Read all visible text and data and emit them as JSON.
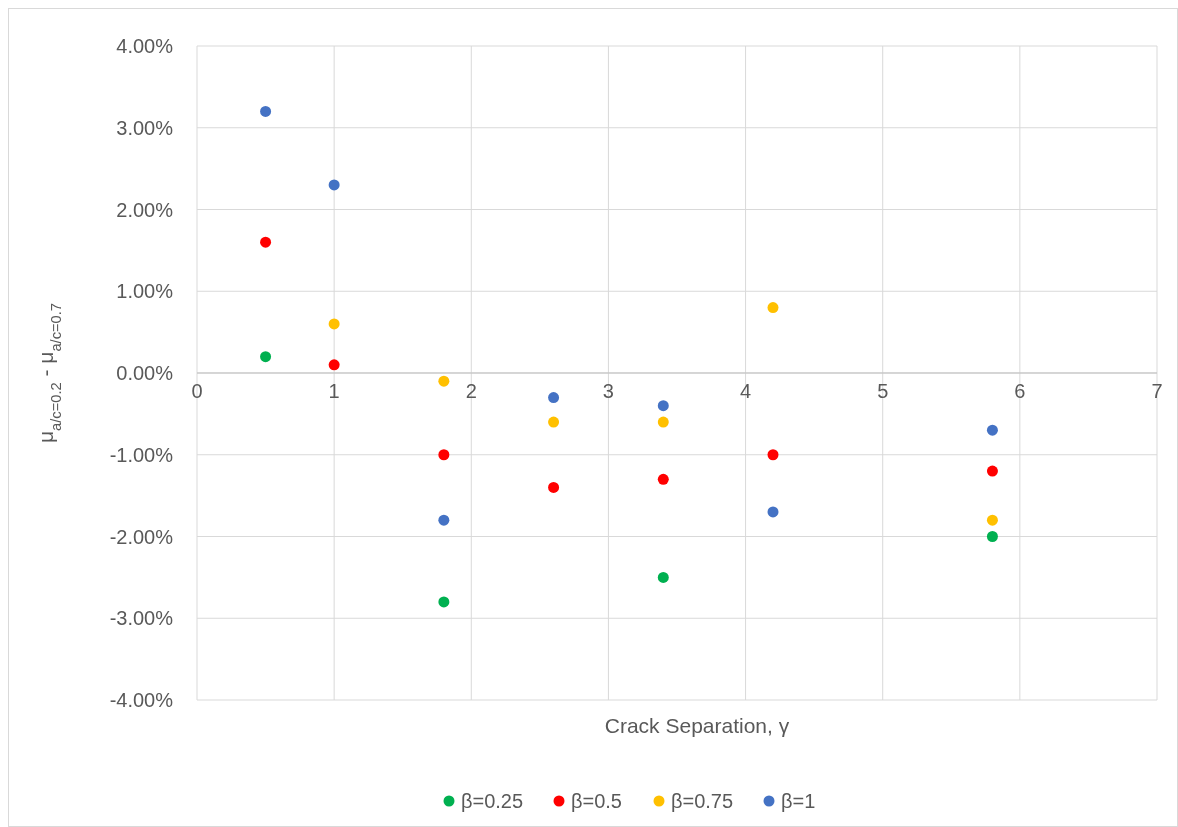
{
  "chart_data": {
    "type": "scatter",
    "xlabel": "Crack Separation, γ",
    "ylabel": "μ$_{a/c=0.2}$ - μ$_{a/c=0.7}$",
    "xlim": [
      0,
      7
    ],
    "xticks": [
      0,
      1,
      2,
      3,
      4,
      5,
      6,
      7
    ],
    "ylim": [
      -4,
      4
    ],
    "yticks": [
      {
        "value": -4,
        "label": "-4.00%"
      },
      {
        "value": -3,
        "label": "-3.00%"
      },
      {
        "value": -2,
        "label": "-2.00%"
      },
      {
        "value": -1,
        "label": "-1.00%"
      },
      {
        "value": 0,
        "label": "0.00%"
      },
      {
        "value": 1,
        "label": "1.00%"
      },
      {
        "value": 2,
        "label": "2.00%"
      },
      {
        "value": 3,
        "label": "3.00%"
      },
      {
        "value": 4,
        "label": "4.00%"
      }
    ],
    "grid": true,
    "legend": "bottom",
    "marker": "circle",
    "series": [
      {
        "name": "β=0.25",
        "color": "#00b050",
        "x": [
          0.5,
          1.8,
          3.4,
          5.8
        ],
        "values": [
          0.2,
          -2.8,
          -2.5,
          -2.0
        ]
      },
      {
        "name": "β=0.5",
        "color": "#ff0000",
        "x": [
          0.5,
          1,
          1.8,
          2.6,
          3.4,
          4.2,
          5.8
        ],
        "values": [
          1.6,
          0.1,
          -1.0,
          -1.4,
          -1.3,
          -1.0,
          -1.2
        ]
      },
      {
        "name": "β=0.75",
        "color": "#ffc000",
        "x": [
          1,
          1.8,
          2.6,
          3.4,
          4.2,
          5.8
        ],
        "values": [
          0.6,
          -0.1,
          -0.6,
          -0.6,
          0.8,
          -1.8
        ]
      },
      {
        "name": "β=1",
        "color": "#4472c4",
        "x": [
          0.5,
          1,
          1.8,
          2.6,
          3.4,
          4.2,
          5.8
        ],
        "values": [
          3.2,
          2.3,
          -1.8,
          -0.3,
          -0.4,
          -1.7,
          -0.7
        ]
      }
    ]
  }
}
